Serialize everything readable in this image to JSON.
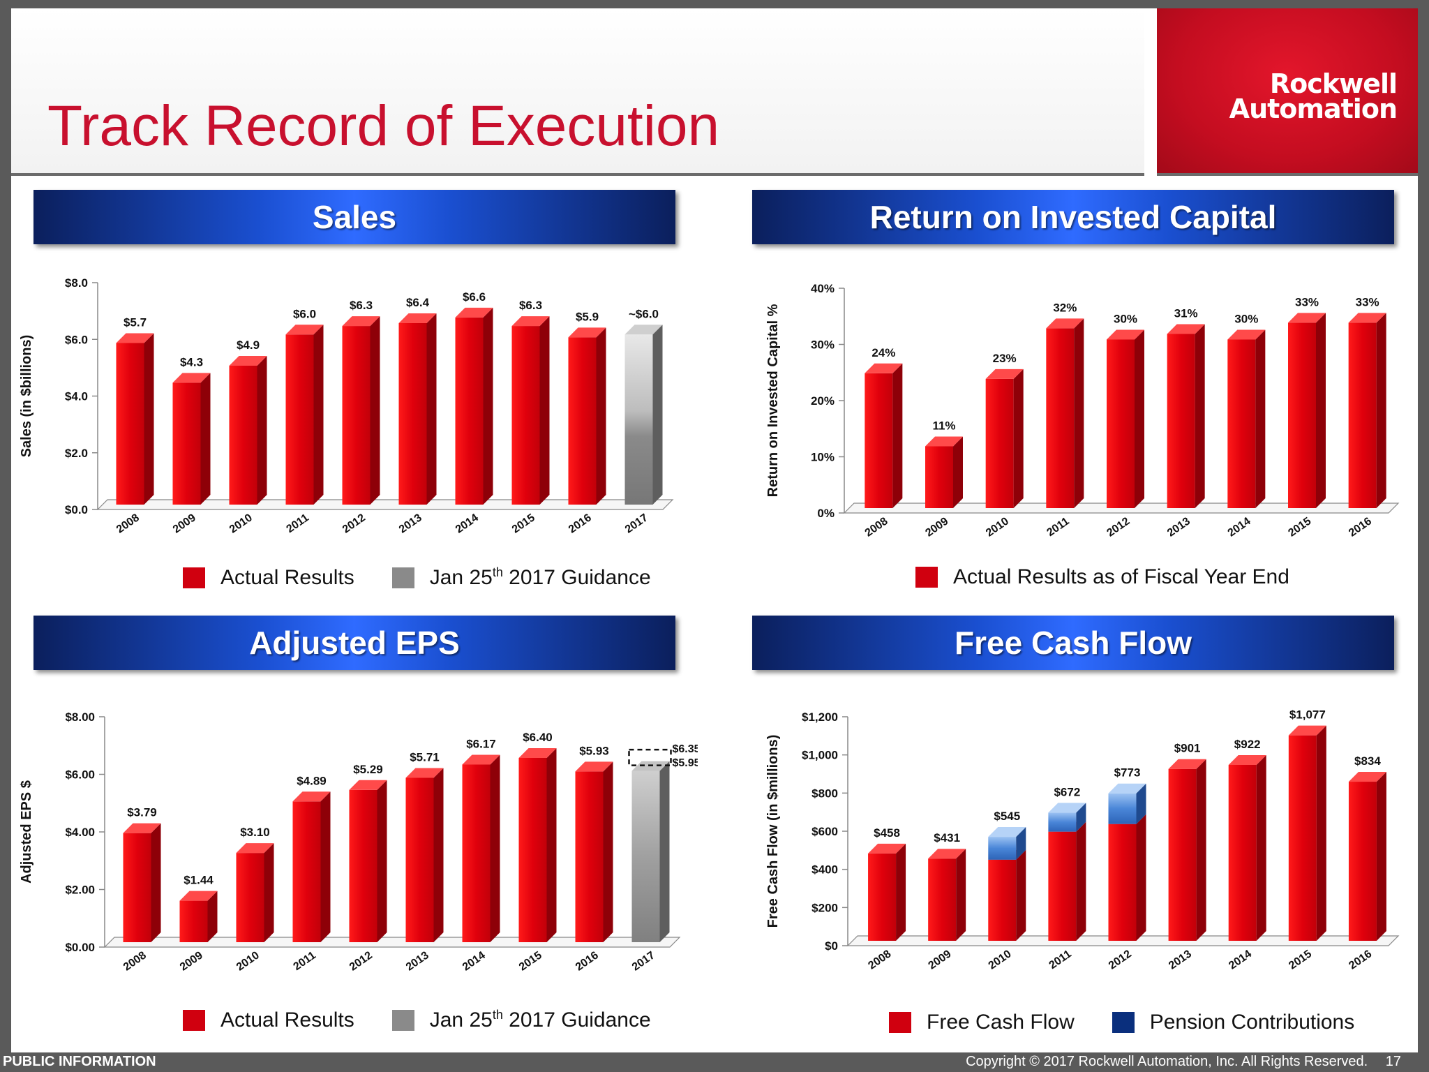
{
  "title": "Track Record of Execution",
  "logo": {
    "line1": "Rockwell",
    "line2": "Automation"
  },
  "footer": {
    "left": "PUBLIC INFORMATION",
    "right": "Copyright  © 2017 Rockwell Automation, Inc. All Rights Reserved.",
    "page": "17"
  },
  "colors": {
    "red": "#e00012",
    "gray": "#8c8c8c",
    "blue": "#4a86d8",
    "navy": "#0a2f7d"
  },
  "panels": {
    "sales": {
      "banner": "Sales",
      "legend": [
        {
          "label": "Actual Results",
          "color": "#d0000f"
        },
        {
          "label_main": "Jan 25",
          "label_sup": "th",
          "label_rest": " 2017 Guidance",
          "color": "#8a8a8a"
        }
      ]
    },
    "roic": {
      "banner": "Return on Invested Capital",
      "legend": [
        {
          "label": "Actual Results as of Fiscal Year End",
          "color": "#d0000f"
        }
      ]
    },
    "eps": {
      "banner": "Adjusted EPS",
      "legend": [
        {
          "label": "Actual Results",
          "color": "#d0000f"
        },
        {
          "label_main": "Jan 25",
          "label_sup": "th",
          "label_rest": " 2017 Guidance",
          "color": "#8a8a8a"
        }
      ]
    },
    "fcf": {
      "banner": "Free Cash Flow",
      "legend": [
        {
          "label": "Free Cash Flow",
          "color": "#d0000f"
        },
        {
          "label": "Pension Contributions",
          "color": "#0a2f7d"
        }
      ]
    }
  },
  "chart_data": [
    {
      "id": "sales",
      "type": "bar",
      "ylabel": "Sales (in $billions)",
      "categories": [
        "2008",
        "2009",
        "2010",
        "2011",
        "2012",
        "2013",
        "2014",
        "2015",
        "2016",
        "2017"
      ],
      "values": [
        5.7,
        4.3,
        4.9,
        6.0,
        6.3,
        6.4,
        6.6,
        6.3,
        5.9,
        6.0
      ],
      "labels": [
        "$5.7",
        "$4.3",
        "$4.9",
        "$6.0",
        "$6.3",
        "$6.4",
        "$6.6",
        "$6.3",
        "$5.9",
        "~$6.0"
      ],
      "guidance_index": 9,
      "ylim": [
        0,
        8
      ],
      "yticks": [
        "$0.0",
        "$2.0",
        "$4.0",
        "$6.0",
        "$8.0"
      ],
      "series": [
        {
          "name": "Actual Results"
        },
        {
          "name": "Jan 25th 2017 Guidance"
        }
      ]
    },
    {
      "id": "roic",
      "type": "bar",
      "ylabel": "Return on Invested Capital %",
      "categories": [
        "2008",
        "2009",
        "2010",
        "2011",
        "2012",
        "2013",
        "2014",
        "2015",
        "2016"
      ],
      "values": [
        24,
        11,
        23,
        32,
        30,
        31,
        30,
        33,
        33
      ],
      "labels": [
        "24%",
        "11%",
        "23%",
        "32%",
        "30%",
        "31%",
        "30%",
        "33%",
        "33%"
      ],
      "ylim": [
        0,
        40
      ],
      "yticks": [
        "0%",
        "10%",
        "20%",
        "30%",
        "40%"
      ],
      "series": [
        {
          "name": "Actual Results as of Fiscal Year End"
        }
      ]
    },
    {
      "id": "eps",
      "type": "bar",
      "ylabel": "Adjusted EPS $",
      "categories": [
        "2008",
        "2009",
        "2010",
        "2011",
        "2012",
        "2013",
        "2014",
        "2015",
        "2016",
        "2017"
      ],
      "values": [
        3.79,
        1.44,
        3.1,
        4.89,
        5.29,
        5.71,
        6.17,
        6.4,
        5.93,
        5.95
      ],
      "labels": [
        "$3.79",
        "$1.44",
        "$3.10",
        "$4.89",
        "$5.29",
        "$5.71",
        "$6.17",
        "$6.40",
        "$5.93",
        ""
      ],
      "guidance_index": 9,
      "guidance_range": [
        5.95,
        6.35
      ],
      "guidance_labels": [
        "$6.35",
        "$5.95"
      ],
      "ylim": [
        0,
        8
      ],
      "yticks": [
        "$0.00",
        "$2.00",
        "$4.00",
        "$6.00",
        "$8.00"
      ],
      "series": [
        {
          "name": "Actual Results"
        },
        {
          "name": "Jan 25th 2017 Guidance"
        }
      ]
    },
    {
      "id": "fcf",
      "type": "bar",
      "stacked": true,
      "ylabel": "Free Cash Flow (in $millions)",
      "categories": [
        "2008",
        "2009",
        "2010",
        "2011",
        "2012",
        "2013",
        "2014",
        "2015",
        "2016"
      ],
      "series": [
        {
          "name": "Free Cash Flow",
          "values": [
            458,
            431,
            425,
            572,
            612,
            901,
            922,
            1077,
            834
          ]
        },
        {
          "name": "Pension Contributions",
          "values": [
            0,
            0,
            120,
            100,
            161,
            0,
            0,
            0,
            0
          ]
        }
      ],
      "labels": [
        "$458",
        "$431",
        "$545",
        "$672",
        "$773",
        "$901",
        "$922",
        "$1,077",
        "$834"
      ],
      "ylim": [
        0,
        1200
      ],
      "yticks": [
        "$0",
        "$200",
        "$400",
        "$600",
        "$800",
        "$1,000",
        "$1,200"
      ]
    }
  ]
}
